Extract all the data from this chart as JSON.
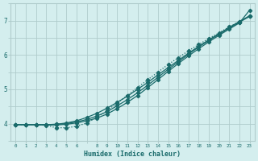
{
  "xlabel": "Humidex (Indice chaleur)",
  "bg_color": "#d4eeee",
  "grid_color": "#b0cccc",
  "line_color": "#1a6b6b",
  "xlim": [
    -0.5,
    23.5
  ],
  "ylim": [
    3.72,
    7.45
  ],
  "xticks": [
    0,
    1,
    2,
    3,
    4,
    5,
    6,
    8,
    9,
    10,
    11,
    12,
    13,
    14,
    15,
    16,
    17,
    18,
    19,
    20,
    21,
    22,
    23
  ],
  "yticks": [
    4,
    5,
    6,
    7
  ],
  "lines": [
    {
      "x": [
        0,
        1,
        2,
        3,
        4,
        5,
        6,
        7,
        8,
        9,
        10,
        11,
        12,
        13,
        14,
        15,
        16,
        17,
        18,
        19,
        20,
        21,
        22,
        23
      ],
      "y": [
        3.97,
        3.97,
        3.97,
        3.97,
        3.98,
        4.02,
        4.08,
        4.18,
        4.3,
        4.45,
        4.62,
        4.8,
        5.0,
        5.2,
        5.42,
        5.63,
        5.84,
        6.05,
        6.25,
        6.44,
        6.62,
        6.8,
        6.97,
        7.14
      ],
      "linestyle": "-",
      "marker": "D"
    },
    {
      "x": [
        0,
        1,
        2,
        3,
        4,
        5,
        6,
        7,
        8,
        9,
        10,
        11,
        12,
        13,
        14,
        15,
        16,
        17,
        18,
        19,
        20,
        21,
        22,
        23
      ],
      "y": [
        3.97,
        3.97,
        3.97,
        3.95,
        3.88,
        3.88,
        3.92,
        4.02,
        4.18,
        4.38,
        4.6,
        4.82,
        5.05,
        5.28,
        5.5,
        5.72,
        5.92,
        6.12,
        6.3,
        6.48,
        6.64,
        6.82,
        6.97,
        7.12
      ],
      "linestyle": ":",
      "marker": "D"
    },
    {
      "x": [
        0,
        1,
        2,
        3,
        4,
        5,
        6,
        7,
        8,
        9,
        10,
        11,
        12,
        13,
        14,
        15,
        16,
        17,
        18,
        19,
        20,
        21,
        22,
        23
      ],
      "y": [
        3.97,
        3.97,
        3.97,
        3.97,
        3.98,
        4.0,
        4.05,
        4.12,
        4.22,
        4.35,
        4.52,
        4.7,
        4.9,
        5.12,
        5.35,
        5.58,
        5.8,
        6.02,
        6.23,
        6.42,
        6.6,
        6.78,
        6.95,
        7.12
      ],
      "linestyle": "-",
      "marker": "D"
    },
    {
      "x": [
        0,
        1,
        2,
        3,
        4,
        5,
        6,
        7,
        8,
        9,
        10,
        11,
        12,
        13,
        14,
        15,
        16,
        17,
        18,
        19,
        20,
        21,
        22,
        23
      ],
      "y": [
        3.97,
        3.97,
        3.97,
        3.96,
        3.96,
        3.98,
        4.02,
        4.08,
        4.16,
        4.28,
        4.44,
        4.62,
        4.82,
        5.05,
        5.28,
        5.52,
        5.75,
        5.97,
        6.18,
        6.38,
        6.57,
        6.75,
        6.93,
        7.3
      ],
      "linestyle": "-",
      "marker": "D"
    }
  ]
}
